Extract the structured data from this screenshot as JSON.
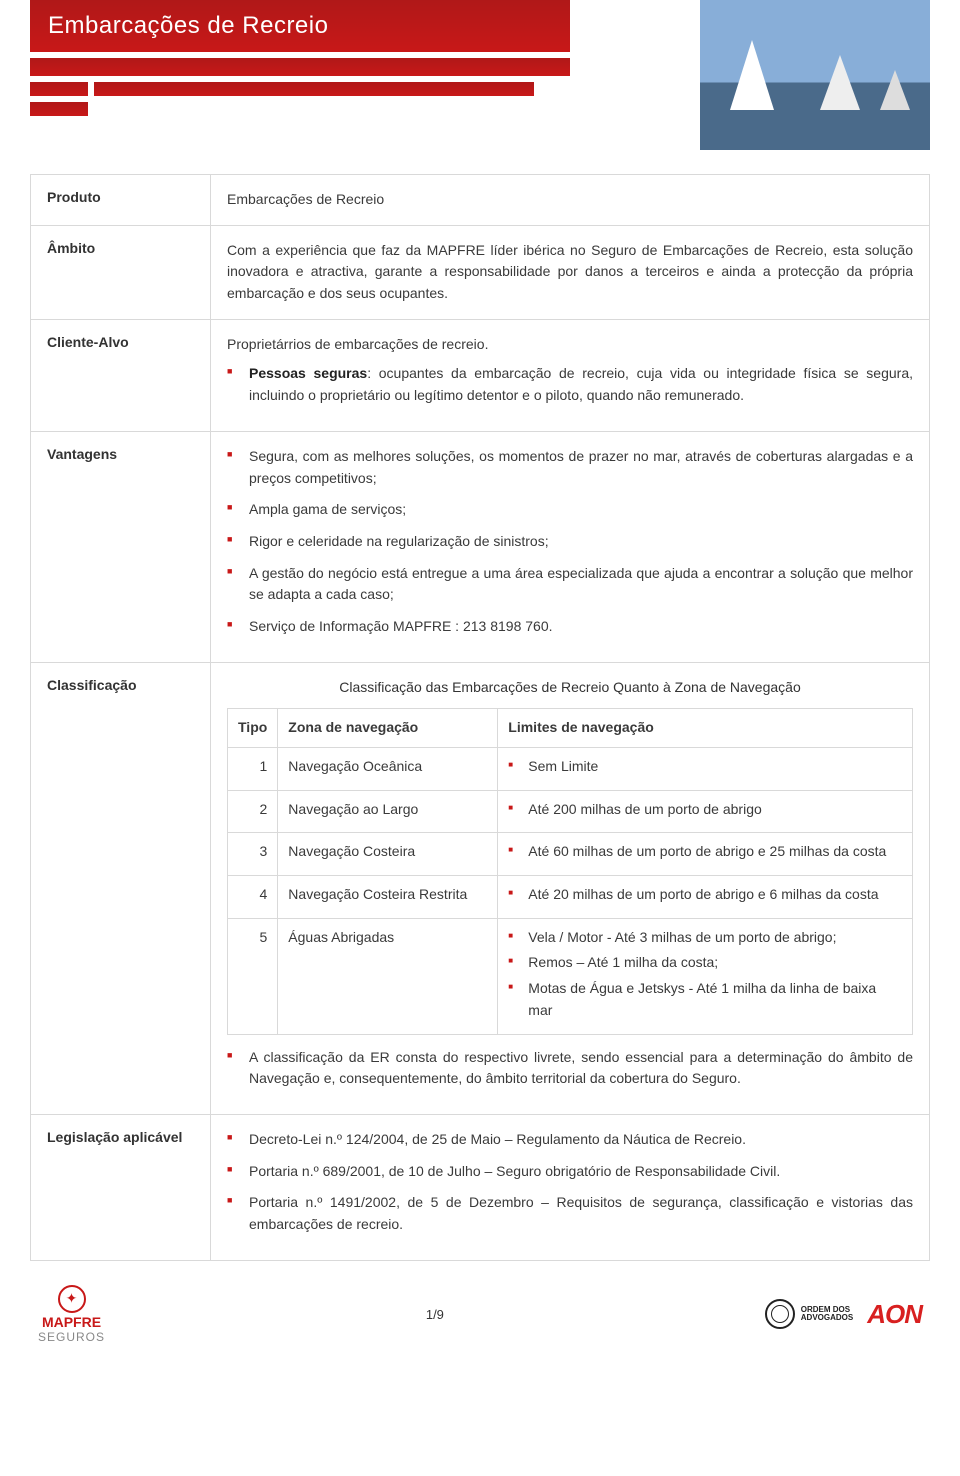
{
  "header": {
    "title": "Embarcações de Recreio"
  },
  "rows": {
    "produto": {
      "label": "Produto",
      "value": "Embarcações de Recreio"
    },
    "ambito": {
      "label": "Âmbito",
      "value": "Com a experiência que faz da MAPFRE líder ibérica no Seguro de Embarcações de Recreio, esta solução inovadora e atractiva, garante a responsabilidade por danos a terceiros e ainda a protecção da própria embarcação e dos seus ocupantes."
    },
    "cliente": {
      "label": "Cliente-Alvo",
      "intro": "Proprietárrios de embarcações de recreio.",
      "bullet_lead": "Pessoas seguras",
      "bullet_rest": ": ocupantes da embarcação de recreio, cuja vida ou integridade física se segura, incluindo o proprietário ou legítimo detentor e o piloto, quando não remunerado."
    },
    "vantagens": {
      "label": "Vantagens",
      "items": [
        "Segura, com as melhores soluções, os momentos de prazer no mar, através de coberturas alargadas e a preços competitivos;",
        "Ampla gama de serviços;",
        "Rigor e celeridade na regularização de sinistros;",
        "A gestão do negócio está entregue a uma área especializada que ajuda a encontrar a solução que melhor se adapta a cada caso;",
        "Serviço de Informação MAPFRE : 213 8198 760."
      ]
    },
    "classificacao": {
      "label": "Classificação",
      "title": "Classificação das Embarcações de Recreio Quanto à Zona de Navegação",
      "cols": {
        "tipo": "Tipo",
        "zona": "Zona de navegação",
        "limites": "Limites de navegação"
      },
      "rows": [
        {
          "tipo": "1",
          "zona": "Navegação Oceânica",
          "limites": [
            "Sem Limite"
          ]
        },
        {
          "tipo": "2",
          "zona": "Navegação ao Largo",
          "limites": [
            "Até 200 milhas de um porto de abrigo"
          ]
        },
        {
          "tipo": "3",
          "zona": "Navegação Costeira",
          "limites": [
            "Até 60 milhas de um porto de abrigo e 25 milhas da costa"
          ]
        },
        {
          "tipo": "4",
          "zona": "Navegação Costeira Restrita",
          "limites": [
            "Até 20 milhas de um porto de abrigo e 6 milhas da costa"
          ]
        },
        {
          "tipo": "5",
          "zona": "Águas Abrigadas",
          "limites": [
            "Vela / Motor - Até 3 milhas de um porto de abrigo;",
            "Remos – Até 1 milha da costa;",
            "Motas de Água e Jetskys - Até 1 milha da linha de baixa mar"
          ]
        }
      ],
      "footnote": "A classificação da ER consta do respectivo livrete, sendo essencial para a determinação do âmbito de Navegação e, consequentemente, do âmbito territorial da cobertura do Seguro."
    },
    "legislacao": {
      "label": "Legislação aplicável",
      "items": [
        "Decreto-Lei n.º 124/2004, de 25 de Maio – Regulamento da Náutica de Recreio.",
        "Portaria n.º 689/2001, de 10 de Julho – Seguro obrigatório de Responsabilidade Civil.",
        "Portaria n.º 1491/2002, de 5 de Dezembro – Requisitos de segurança, classificação e vistorias das embarcações de recreio."
      ]
    }
  },
  "footer": {
    "page": "1/9",
    "mapfre1": "MAPFRE",
    "mapfre2": "SEGUROS",
    "ordem1": "ORDEM DOS",
    "ordem2": "ADVOGADOS",
    "aon": "AON"
  },
  "colors": {
    "brand_red": "#c81818",
    "border": "#d9d9d9",
    "text": "#3a3a3a"
  }
}
